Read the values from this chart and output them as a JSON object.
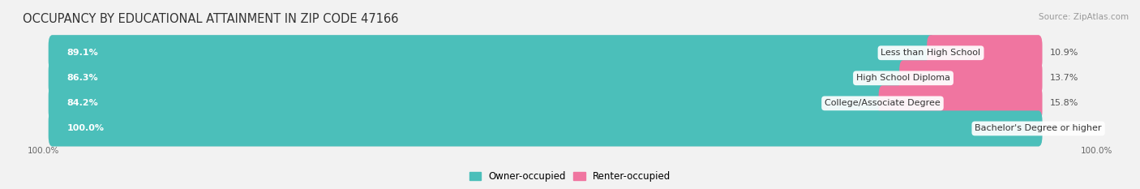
{
  "title": "OCCUPANCY BY EDUCATIONAL ATTAINMENT IN ZIP CODE 47166",
  "source": "Source: ZipAtlas.com",
  "categories": [
    "Less than High School",
    "High School Diploma",
    "College/Associate Degree",
    "Bachelor's Degree or higher"
  ],
  "owner_values": [
    89.1,
    86.3,
    84.2,
    100.0
  ],
  "renter_values": [
    10.9,
    13.7,
    15.8,
    0.0
  ],
  "owner_color": "#4BBFBA",
  "renter_color": "#F075A0",
  "bg_color": "#F2F2F2",
  "bar_bg_color": "#E0E0E0",
  "bar_height": 0.62,
  "bar_gap": 1.0,
  "title_fontsize": 10.5,
  "label_fontsize": 8.0,
  "cat_label_fontsize": 8.0,
  "legend_fontsize": 8.5,
  "axis_label_fontsize": 7.5,
  "source_fontsize": 7.5,
  "xlim_left": -3,
  "xlim_right": 108,
  "bottom_labels": [
    "100.0%",
    "100.0%"
  ]
}
